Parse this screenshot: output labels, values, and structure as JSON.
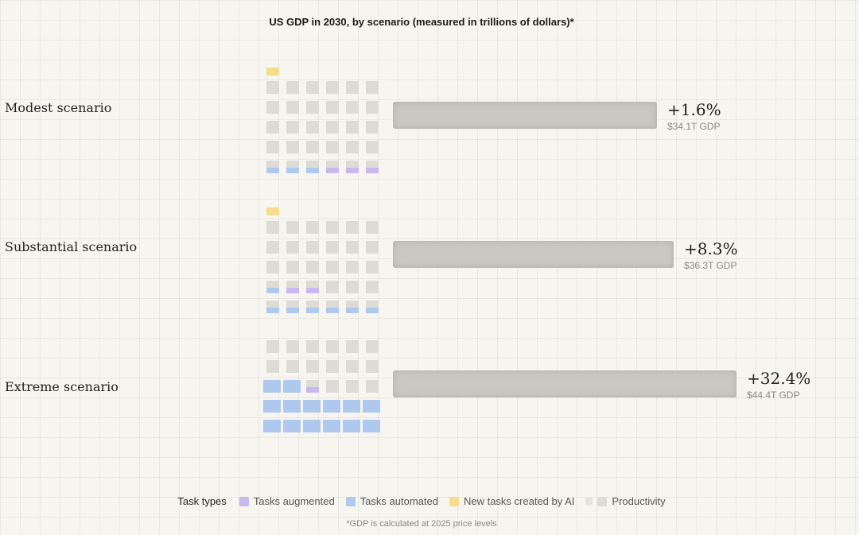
{
  "title": "US GDP in 2030, by scenario (measured in trillions of dollars)*",
  "colors": {
    "augmented": "#c9b8ef",
    "automated": "#aec8ee",
    "new": "#f5dc8e",
    "productivity": "#dddbd5",
    "bar": "#c9c8c3"
  },
  "chart_data": {
    "type": "bar",
    "title": "US GDP in 2030, by scenario (measured in trillions of dollars)*",
    "categories": [
      "Modest scenario",
      "Substantial scenario",
      "Extreme scenario"
    ],
    "values": [
      1.6,
      8.3,
      32.4
    ],
    "value_unit": "% GDP change",
    "gdp_labels": [
      "$34.1T GDP",
      "$36.3T GDP",
      "$44.4T GDP"
    ],
    "gdp_values": [
      34.1,
      36.3,
      44.4
    ],
    "series": [
      {
        "name": "Tasks augmented",
        "color": "#c9b8ef"
      },
      {
        "name": "Tasks automated",
        "color": "#aec8ee"
      },
      {
        "name": "New tasks created by AI",
        "color": "#f5dc8e"
      },
      {
        "name": "Productivity",
        "color": "#dddbd5"
      }
    ],
    "scenarios": [
      {
        "label": "Modest scenario",
        "pct": "+1.6%",
        "gdp": "$34.1T GDP",
        "new_cells": 1,
        "grid": [
          [
            "P",
            "P",
            "P",
            "P",
            "P",
            "P"
          ],
          [
            "P",
            "P",
            "P",
            "P",
            "P",
            "P"
          ],
          [
            "P",
            "P",
            "P",
            "P",
            "P",
            "P"
          ],
          [
            "P",
            "P",
            "P",
            "P",
            "P",
            "P"
          ],
          [
            "T",
            "T",
            "T",
            "U",
            "U",
            "U"
          ]
        ]
      },
      {
        "label": "Substantial scenario",
        "pct": "+8.3%",
        "gdp": "$36.3T GDP",
        "new_cells": 1,
        "grid": [
          [
            "P",
            "P",
            "P",
            "P",
            "P",
            "P"
          ],
          [
            "P",
            "P",
            "P",
            "P",
            "P",
            "P"
          ],
          [
            "P",
            "P",
            "P",
            "P",
            "P",
            "P"
          ],
          [
            "T",
            "U",
            "U",
            "P",
            "P",
            "P"
          ],
          [
            "T",
            "T",
            "T",
            "T",
            "T",
            "T"
          ]
        ]
      },
      {
        "label": "Extreme scenario",
        "pct": "+32.4%",
        "gdp": "$44.4T GDP",
        "new_cells": 0,
        "grid": [
          [
            "P",
            "P",
            "P",
            "P",
            "P",
            "P"
          ],
          [
            "P",
            "P",
            "P",
            "P",
            "P",
            "P"
          ],
          [
            "A",
            "A",
            "U",
            "P",
            "P",
            "P"
          ],
          [
            "A",
            "A",
            "A",
            "A",
            "A",
            "A"
          ],
          [
            "A",
            "A",
            "A",
            "A",
            "A",
            "A"
          ]
        ]
      }
    ],
    "legend": [
      "Tasks augmented",
      "Tasks automated",
      "New tasks created by AI",
      "Productivity"
    ],
    "grid": true
  },
  "legend": {
    "title": "Task types",
    "items": [
      "Tasks augmented",
      "Tasks automated",
      "New tasks created by AI",
      "Productivity"
    ]
  },
  "footnote": "*GDP is calculated at 2025 price levels"
}
